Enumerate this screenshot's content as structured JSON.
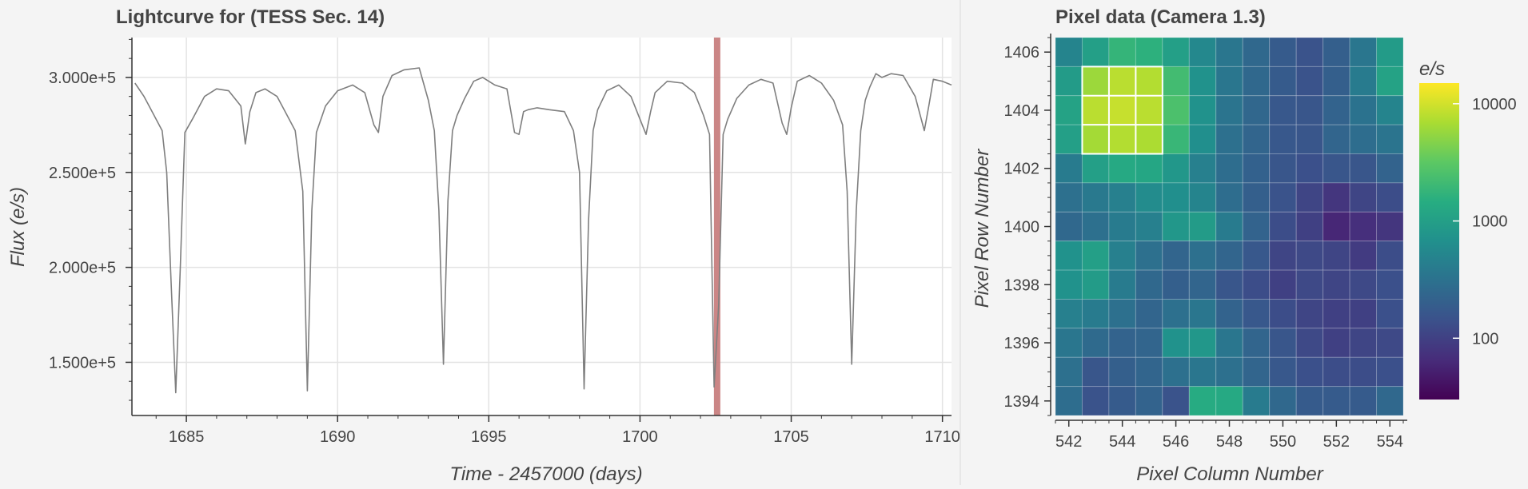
{
  "lightcurve": {
    "title": "Lightcurve for  (TESS Sec. 14)",
    "xlabel": "Time - 2457000 (days)",
    "ylabel": "Flux (e/s)",
    "line_color": "#7f7f7f",
    "marker_color": "#c87f80"
  },
  "pixels": {
    "title": "Pixel data (Camera 1.3)",
    "xlabel": "Pixel Column Number",
    "ylabel": "Pixel Row Number",
    "colorbar_title": "e/s",
    "colorbar_ticks": [
      "10000",
      "1000",
      "100"
    ]
  },
  "chart_data": [
    {
      "type": "line",
      "title": "Lightcurve for  (TESS Sec. 14)",
      "xlabel": "Time - 2457000 (days)",
      "ylabel": "Flux (e/s)",
      "xlim": [
        1683.2,
        1710.3
      ],
      "ylim": [
        122000,
        321000
      ],
      "xticks": [
        1685,
        1690,
        1695,
        1700,
        1705,
        1710
      ],
      "xtick_labels": [
        "1685",
        "1690",
        "1695",
        "1700",
        "1705",
        "1710"
      ],
      "yticks": [
        150000,
        200000,
        250000,
        300000
      ],
      "ytick_labels": [
        "1.500e+5",
        "2.000e+5",
        "2.500e+5",
        "3.000e+5"
      ],
      "grid": true,
      "current_time": 1702.55,
      "series": [
        {
          "x": [
            1683.3,
            1683.6,
            1683.9,
            1684.2,
            1684.35,
            1684.5,
            1684.65,
            1684.8,
            1684.95,
            1685.2,
            1685.6,
            1686.0,
            1686.4,
            1686.8,
            1686.95,
            1687.1,
            1687.3,
            1687.6,
            1688.0,
            1688.3,
            1688.6,
            1688.85,
            1689.0,
            1689.15,
            1689.3,
            1689.45,
            1689.6,
            1690.0,
            1690.5,
            1690.9,
            1691.2,
            1691.35,
            1691.5,
            1691.8,
            1692.2,
            1692.7,
            1693.0,
            1693.2,
            1693.35,
            1693.5,
            1693.65,
            1693.8,
            1693.95,
            1694.2,
            1694.5,
            1694.8,
            1695.2,
            1695.6,
            1695.85,
            1696.0,
            1696.15,
            1696.3,
            1696.6,
            1697.0,
            1697.5,
            1697.8,
            1698.0,
            1698.15,
            1698.3,
            1698.45,
            1698.6,
            1698.9,
            1699.3,
            1699.7,
            1700.0,
            1700.2,
            1700.35,
            1700.5,
            1700.9,
            1701.4,
            1701.8,
            1702.1,
            1702.3,
            1702.45,
            1702.6,
            1702.75,
            1702.9,
            1703.2,
            1703.6,
            1704.0,
            1704.4,
            1704.7,
            1704.85,
            1705.0,
            1705.2,
            1705.6,
            1706.0,
            1706.4,
            1706.7,
            1706.85,
            1707.0,
            1707.15,
            1707.3,
            1707.45,
            1707.6,
            1707.8,
            1708.0,
            1708.3,
            1708.7,
            1709.1,
            1709.4,
            1709.55,
            1709.7,
            1710.0,
            1710.3
          ],
          "y": [
            297000,
            290000,
            281000,
            272000,
            250000,
            190000,
            134000,
            200000,
            271000,
            278000,
            290000,
            294000,
            293000,
            285000,
            265000,
            282000,
            292000,
            294000,
            290000,
            281000,
            272000,
            240000,
            135000,
            230000,
            271000,
            278000,
            285000,
            293000,
            296000,
            292000,
            275000,
            271000,
            290000,
            301000,
            304000,
            305000,
            288000,
            272000,
            230000,
            149000,
            235000,
            272000,
            280000,
            289000,
            298000,
            300000,
            296000,
            294000,
            271000,
            270000,
            282000,
            283000,
            284000,
            283000,
            282000,
            272000,
            250000,
            136000,
            225000,
            272000,
            283000,
            293000,
            296000,
            290000,
            278000,
            270000,
            282000,
            292000,
            298000,
            297000,
            292000,
            280000,
            270000,
            137000,
            180000,
            270000,
            278000,
            289000,
            296000,
            299000,
            297000,
            276000,
            270000,
            284000,
            298000,
            301000,
            297000,
            288000,
            275000,
            240000,
            149000,
            230000,
            272000,
            288000,
            295000,
            302000,
            300000,
            302000,
            301000,
            290000,
            272000,
            285000,
            299000,
            298000,
            296000
          ]
        }
      ]
    },
    {
      "type": "heatmap",
      "title": "Pixel data (Camera 1.3)",
      "xlabel": "Pixel Column Number",
      "ylabel": "Pixel Row Number",
      "xlim": [
        541.5,
        554.5
      ],
      "ylim": [
        1393.5,
        1406.5
      ],
      "xticks": [
        542,
        544,
        546,
        548,
        550,
        552,
        554
      ],
      "yticks": [
        1394,
        1396,
        1398,
        1400,
        1402,
        1404,
        1406
      ],
      "colorbar": {
        "title": "e/s",
        "scale": "log",
        "range": [
          30,
          15000
        ],
        "ticks": [
          10000,
          1000,
          100
        ]
      },
      "aperture": {
        "cols": [
          543,
          544,
          545
        ],
        "rows": [
          1403,
          1404,
          1405
        ]
      },
      "cols": [
        542,
        543,
        544,
        545,
        546,
        547,
        548,
        549,
        550,
        551,
        552,
        553,
        554
      ],
      "rows": [
        1406,
        1405,
        1404,
        1403,
        1402,
        1401,
        1400,
        1399,
        1398,
        1397,
        1396,
        1395,
        1394
      ],
      "values": [
        [
          500,
          1000,
          1800,
          1600,
          1000,
          550,
          350,
          250,
          180,
          150,
          200,
          350,
          900
        ],
        [
          900,
          6000,
          8000,
          7500,
          2200,
          700,
          350,
          250,
          180,
          150,
          200,
          400,
          1100
        ],
        [
          1100,
          8000,
          9000,
          8000,
          2500,
          700,
          330,
          240,
          170,
          160,
          220,
          320,
          500
        ],
        [
          1000,
          6500,
          7500,
          7000,
          1900,
          650,
          300,
          230,
          170,
          160,
          230,
          280,
          330
        ],
        [
          400,
          1000,
          1300,
          1200,
          800,
          450,
          280,
          210,
          160,
          140,
          160,
          160,
          220
        ],
        [
          300,
          380,
          450,
          600,
          650,
          500,
          280,
          200,
          150,
          110,
          80,
          110,
          130
        ],
        [
          250,
          300,
          400,
          450,
          800,
          900,
          400,
          220,
          130,
          100,
          60,
          70,
          80
        ],
        [
          700,
          1000,
          450,
          300,
          230,
          300,
          230,
          170,
          110,
          120,
          110,
          90,
          130
        ],
        [
          700,
          900,
          400,
          250,
          200,
          230,
          160,
          130,
          100,
          120,
          110,
          120,
          140
        ],
        [
          450,
          400,
          300,
          230,
          300,
          350,
          220,
          170,
          130,
          110,
          100,
          100,
          140
        ],
        [
          350,
          260,
          220,
          230,
          700,
          800,
          350,
          230,
          160,
          120,
          100,
          110,
          120
        ],
        [
          300,
          160,
          200,
          230,
          300,
          350,
          300,
          230,
          170,
          140,
          130,
          130,
          140
        ],
        [
          280,
          150,
          180,
          220,
          150,
          1400,
          1300,
          400,
          250,
          180,
          180,
          180,
          250
        ]
      ]
    }
  ]
}
